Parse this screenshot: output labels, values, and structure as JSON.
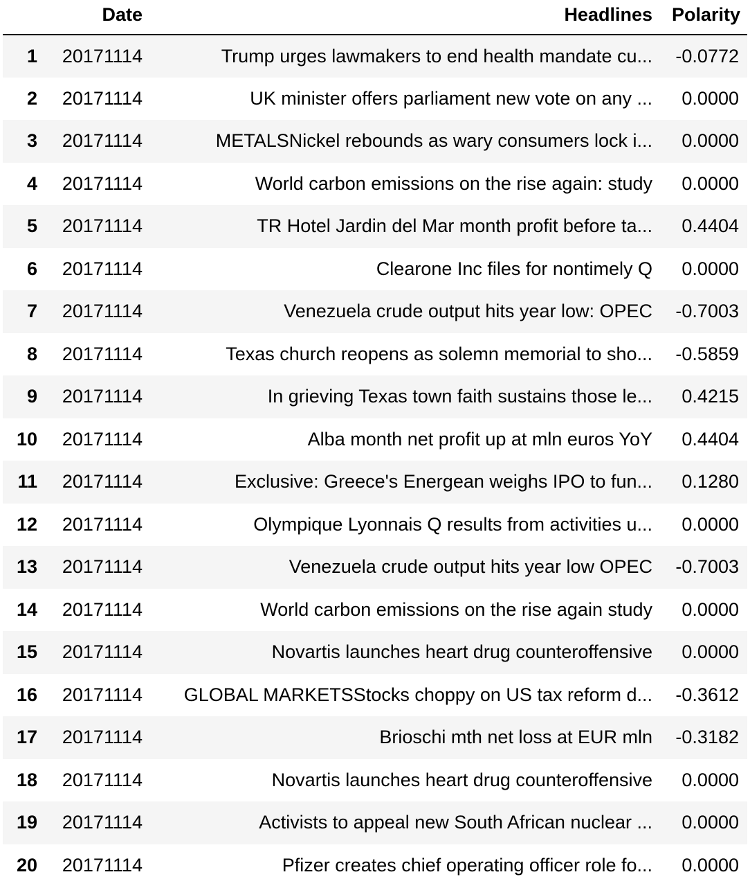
{
  "table": {
    "columns": {
      "index": "",
      "date": "Date",
      "headlines": "Headlines",
      "polarity": "Polarity"
    },
    "rows": [
      {
        "index": "1",
        "date": "20171114",
        "headline": "Trump urges lawmakers to end health mandate cu...",
        "polarity": "-0.0772"
      },
      {
        "index": "2",
        "date": "20171114",
        "headline": "UK minister offers parliament new vote on any ...",
        "polarity": "0.0000"
      },
      {
        "index": "3",
        "date": "20171114",
        "headline": "METALSNickel rebounds as wary consumers lock i...",
        "polarity": "0.0000"
      },
      {
        "index": "4",
        "date": "20171114",
        "headline": "World carbon emissions on the rise again: study",
        "polarity": "0.0000"
      },
      {
        "index": "5",
        "date": "20171114",
        "headline": "TR Hotel Jardin del Mar month profit before ta...",
        "polarity": "0.4404"
      },
      {
        "index": "6",
        "date": "20171114",
        "headline": "Clearone Inc files for nontimely Q",
        "polarity": "0.0000"
      },
      {
        "index": "7",
        "date": "20171114",
        "headline": "Venezuela crude output hits year low: OPEC",
        "polarity": "-0.7003"
      },
      {
        "index": "8",
        "date": "20171114",
        "headline": "Texas church reopens as solemn memorial to sho...",
        "polarity": "-0.5859"
      },
      {
        "index": "9",
        "date": "20171114",
        "headline": "In grieving Texas town faith sustains those le...",
        "polarity": "0.4215"
      },
      {
        "index": "10",
        "date": "20171114",
        "headline": "Alba month net profit up at mln euros YoY",
        "polarity": "0.4404"
      },
      {
        "index": "11",
        "date": "20171114",
        "headline": "Exclusive: Greece's Energean weighs IPO to fun...",
        "polarity": "0.1280"
      },
      {
        "index": "12",
        "date": "20171114",
        "headline": "Olympique Lyonnais Q results from activities u...",
        "polarity": "0.0000"
      },
      {
        "index": "13",
        "date": "20171114",
        "headline": "Venezuela crude output hits year low OPEC",
        "polarity": "-0.7003"
      },
      {
        "index": "14",
        "date": "20171114",
        "headline": "World carbon emissions on the rise again study",
        "polarity": "0.0000"
      },
      {
        "index": "15",
        "date": "20171114",
        "headline": "Novartis launches heart drug counteroffensive",
        "polarity": "0.0000"
      },
      {
        "index": "16",
        "date": "20171114",
        "headline": "GLOBAL MARKETSStocks choppy on US tax reform d...",
        "polarity": "-0.3612"
      },
      {
        "index": "17",
        "date": "20171114",
        "headline": "Brioschi mth net loss at EUR  mln",
        "polarity": "-0.3182"
      },
      {
        "index": "18",
        "date": "20171114",
        "headline": "Novartis launches heart drug counteroffensive",
        "polarity": "0.0000"
      },
      {
        "index": "19",
        "date": "20171114",
        "headline": "Activists to appeal new South African nuclear ...",
        "polarity": "0.0000"
      },
      {
        "index": "20",
        "date": "20171114",
        "headline": "Pfizer creates chief operating officer role fo...",
        "polarity": "0.0000"
      }
    ]
  }
}
